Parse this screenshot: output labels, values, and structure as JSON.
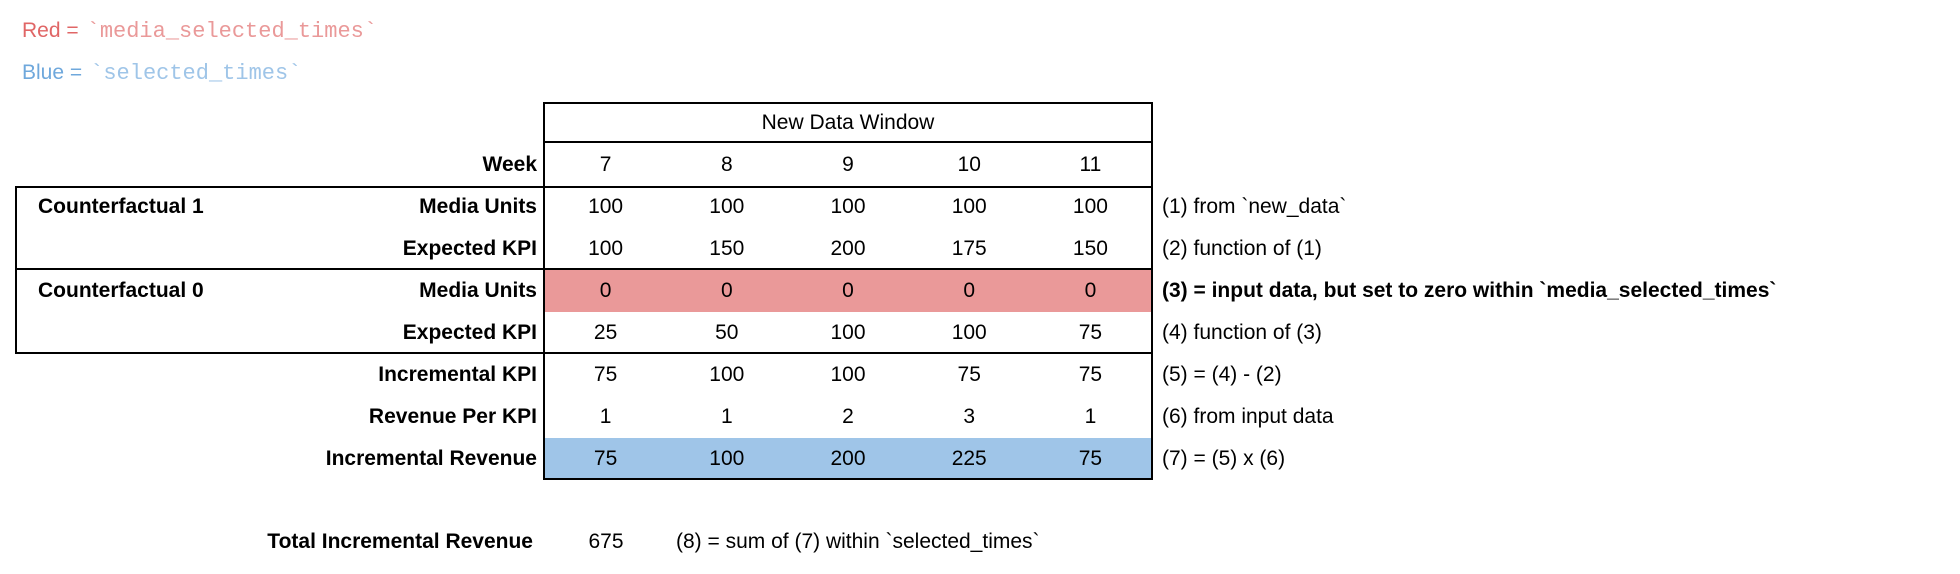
{
  "legend": {
    "red": {
      "label": "Red =",
      "code": "`media_selected_times`"
    },
    "blue": {
      "label": "Blue =",
      "code": "`selected_times`"
    }
  },
  "table": {
    "window_title": "New Data Window",
    "week_label": "Week",
    "weeks": [
      "7",
      "8",
      "9",
      "10",
      "11"
    ],
    "rows": [
      {
        "group": "Counterfactual 1",
        "label": "Media Units",
        "values": [
          "100",
          "100",
          "100",
          "100",
          "100"
        ],
        "note": "(1) from `new_data`"
      },
      {
        "group": "",
        "label": "Expected KPI",
        "values": [
          "100",
          "150",
          "200",
          "175",
          "150"
        ],
        "note": "(2) function of (1)"
      },
      {
        "group": "Counterfactual 0",
        "label": "Media Units",
        "values": [
          "0",
          "0",
          "0",
          "0",
          "0"
        ],
        "note": "(3) = input data, but set to zero within `media_selected_times`",
        "highlight": "red"
      },
      {
        "group": "",
        "label": "Expected KPI",
        "values": [
          "25",
          "50",
          "100",
          "100",
          "75"
        ],
        "note": "(4) function of (3)"
      },
      {
        "group": "",
        "label": "Incremental KPI",
        "values": [
          "75",
          "100",
          "100",
          "75",
          "75"
        ],
        "note": "(5) = (4) - (2)"
      },
      {
        "group": "",
        "label": "Revenue Per KPI",
        "values": [
          "1",
          "1",
          "2",
          "3",
          "1"
        ],
        "note": "(6) from input data"
      },
      {
        "group": "",
        "label": "Incremental Revenue",
        "values": [
          "75",
          "100",
          "200",
          "225",
          "75"
        ],
        "note": "(7) = (5) x (6)",
        "highlight": "blue"
      }
    ],
    "total": {
      "label": "Total Incremental Revenue",
      "value": "675",
      "note": "(8) = sum of (7) within `selected_times`"
    }
  },
  "colors": {
    "red_label": "#E06666",
    "red_highlight": "#EA9999",
    "blue_label": "#6FA8DC",
    "blue_highlight": "#9FC5E8",
    "border": "#000000"
  }
}
